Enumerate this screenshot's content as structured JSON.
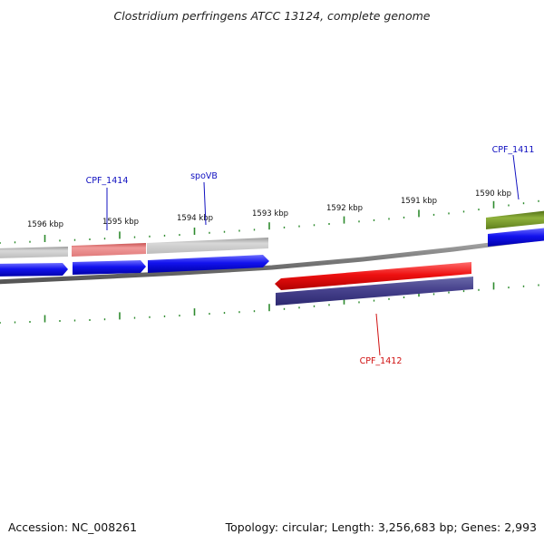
{
  "title": "Clostridium perfringens ATCC 13124, complete genome",
  "footer": {
    "accession": "Accession: NC_008261",
    "summary": "Topology: circular; Length: 3,256,683 bp; Genes: 2,993"
  },
  "scale": {
    "unit": "kbp",
    "labels": [
      "1596 kbp",
      "1595 kbp",
      "1594 kbp",
      "1593 kbp",
      "1592 kbp",
      "1591 kbp",
      "1590 kbp"
    ]
  },
  "gene_labels": [
    {
      "id": "CPF_1414",
      "text": "CPF_1414",
      "color": "#1010c0"
    },
    {
      "id": "spoVB",
      "text": "spoVB",
      "color": "#1010c0"
    },
    {
      "id": "CPF_1411",
      "text": "CPF_1411",
      "color": "#1010c0"
    },
    {
      "id": "CPF_1412",
      "text": "CPF_1412",
      "color": "#d01010"
    }
  ],
  "colors": {
    "backbone": "#7a7a7a",
    "cds_forward": "#1010ee",
    "cds_reverse": "#443f88",
    "highlight_red": "#ee1111",
    "highlight_pink": "#e07a7a",
    "neutral_gray": "#c0c0c0",
    "olive": "#6b8e23",
    "tick": "#2e8b2e"
  }
}
